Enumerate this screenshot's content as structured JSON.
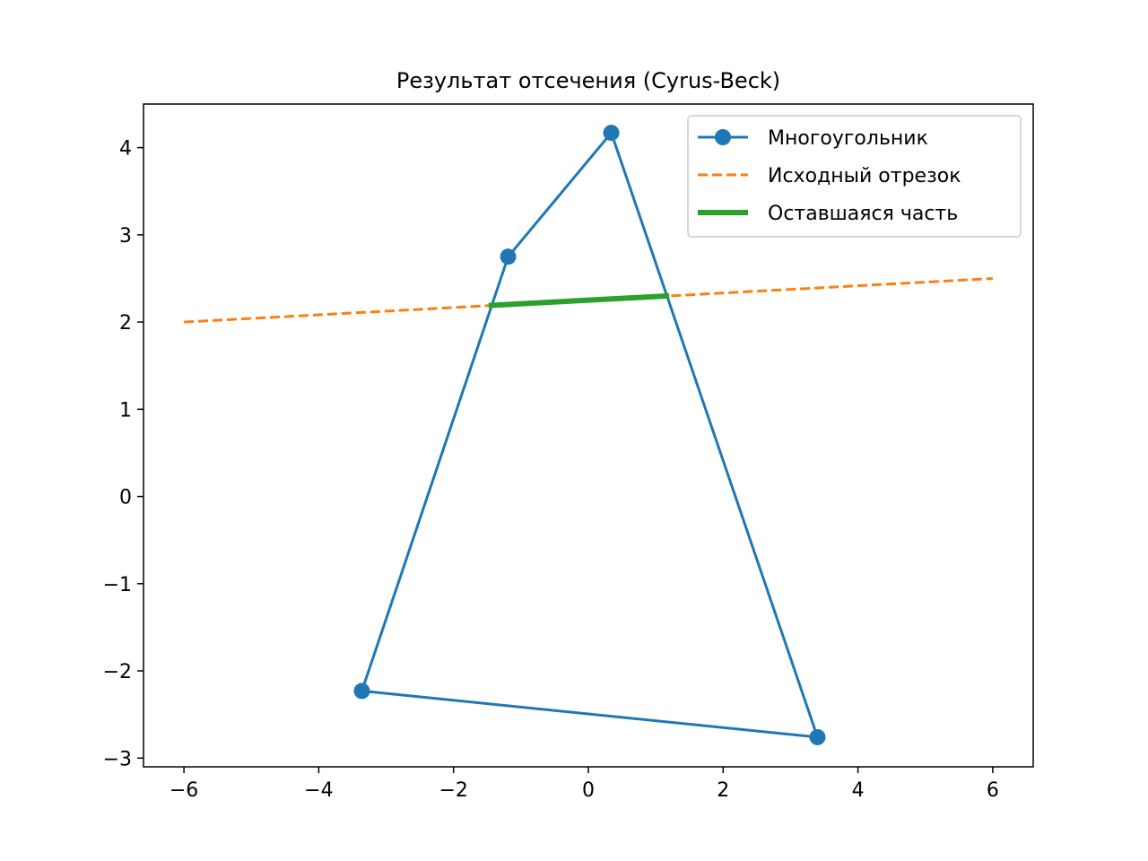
{
  "chart_data": {
    "type": "line",
    "title": "Результат отсечения (Cyrus-Beck)",
    "xlabel": "",
    "ylabel": "",
    "xlim": [
      -6.6,
      6.6
    ],
    "ylim": [
      -3.1,
      4.5
    ],
    "xticks": [
      -6,
      -4,
      -2,
      0,
      2,
      4,
      6
    ],
    "yticks": [
      -3,
      -2,
      -1,
      0,
      1,
      2,
      3,
      4
    ],
    "grid": false,
    "legend_position": "top-right",
    "series": [
      {
        "name": "Многоугольник",
        "style": "solid-with-markers",
        "color": "#1f77b4",
        "closed": true,
        "x": [
          -3.36,
          3.4,
          0.34,
          -1.19
        ],
        "y": [
          -2.23,
          -2.76,
          4.17,
          2.75
        ]
      },
      {
        "name": "Исходный отрезок",
        "style": "dashed",
        "color": "#ff7f0e",
        "x": [
          -6,
          6
        ],
        "y": [
          2.0,
          2.5
        ]
      },
      {
        "name": "Оставшаяся часть",
        "style": "thick-solid",
        "color": "#2ca02c",
        "x": [
          -1.48,
          1.2
        ],
        "y": [
          2.19,
          2.3
        ]
      }
    ]
  }
}
